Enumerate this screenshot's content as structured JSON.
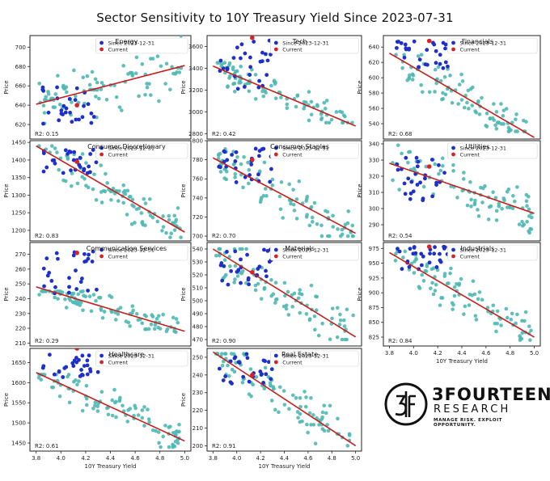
{
  "figure_title": "Sector Sensitivity to 10Y Treasury Yield Since 2023-07-31",
  "logo": {
    "name": "3FOURTEEN",
    "sub": "RESEARCH",
    "tagline": "MANAGE RISK. EXPLOIT OPPORTUNITY."
  },
  "legend": {
    "since": "Since 2023-12-31",
    "current": "Current"
  },
  "colors": {
    "teal": "#4fb8b3",
    "blue": "#1f2fc9",
    "red_point": "#d6232a",
    "trend": "#c81e1e",
    "axis": "#222222"
  },
  "chart_data": [
    {
      "type": "scatter",
      "title": "Energy",
      "ylabel": "Price",
      "xlabel": "",
      "r2": "R2: 0.15",
      "xlim": [
        3.75,
        5.05
      ],
      "ylim": [
        605,
        712
      ],
      "yticks": [
        620,
        640,
        660,
        680,
        700
      ],
      "xticks": [],
      "trend": [
        [
          3.8,
          641
        ],
        [
          5.0,
          681
        ]
      ],
      "current": [
        4.13,
        640
      ],
      "since_y": [
        620,
        660
      ],
      "sec_range": [
        600,
        715
      ],
      "seed": 11
    },
    {
      "type": "scatter",
      "title": "Tech",
      "ylabel": "Price",
      "xlabel": "",
      "r2": "R2: 0.42",
      "xlim": [
        3.75,
        5.05
      ],
      "ylim": [
        2750,
        3700
      ],
      "yticks": [
        2800,
        3000,
        3200,
        3400,
        3600
      ],
      "xticks": [],
      "trend": [
        [
          3.8,
          3420
        ],
        [
          5.0,
          2870
        ]
      ],
      "current": [
        4.13,
        3680
      ],
      "since_y": [
        3200,
        3660
      ],
      "sec_range": [
        2900,
        3450
      ],
      "seed": 22
    },
    {
      "type": "scatter",
      "title": "Financials",
      "ylabel": "Price",
      "xlabel": "",
      "r2": "R2: 0.68",
      "xlim": [
        3.75,
        5.05
      ],
      "ylim": [
        520,
        655
      ],
      "yticks": [
        540,
        560,
        580,
        600,
        620,
        640
      ],
      "xticks": [],
      "trend": [
        [
          3.8,
          632
        ],
        [
          5.0,
          522
        ]
      ],
      "current": [
        4.13,
        648
      ],
      "since_y": [
        612,
        648
      ],
      "sec_range": [
        530,
        630
      ],
      "seed": 33
    },
    {
      "type": "scatter",
      "title": "Consumer Discretionary",
      "ylabel": "Price",
      "xlabel": "",
      "r2": "R2: 0.83",
      "xlim": [
        3.75,
        5.05
      ],
      "ylim": [
        1170,
        1455
      ],
      "yticks": [
        1200,
        1250,
        1300,
        1350,
        1400,
        1450
      ],
      "xticks": [],
      "trend": [
        [
          3.8,
          1440
        ],
        [
          5.0,
          1195
        ]
      ],
      "current": [
        4.13,
        1395
      ],
      "since_y": [
        1360,
        1430
      ],
      "sec_range": [
        1180,
        1440
      ],
      "seed": 44
    },
    {
      "type": "scatter",
      "title": "Consumer Staples",
      "ylabel": "Price",
      "xlabel": "",
      "r2": "R2: 0.70",
      "xlim": [
        3.75,
        5.05
      ],
      "ylim": [
        695,
        800
      ],
      "yticks": [
        700,
        720,
        740,
        760,
        780,
        800
      ],
      "xticks": [],
      "trend": [
        [
          3.8,
          782
        ],
        [
          5.0,
          703
        ]
      ],
      "current": [
        4.13,
        780
      ],
      "since_y": [
        755,
        792
      ],
      "sec_range": [
        700,
        795
      ],
      "seed": 55
    },
    {
      "type": "scatter",
      "title": "Utilities",
      "ylabel": "Price",
      "xlabel": "",
      "r2": "R2: 0.54",
      "xlim": [
        3.75,
        5.05
      ],
      "ylim": [
        280,
        342
      ],
      "yticks": [
        290,
        300,
        310,
        320,
        330,
        340
      ],
      "xticks": [],
      "trend": [
        [
          3.8,
          328
        ],
        [
          5.0,
          297
        ]
      ],
      "current": [
        4.13,
        326
      ],
      "since_y": [
        305,
        332
      ],
      "sec_range": [
        285,
        340
      ],
      "seed": 66
    },
    {
      "type": "scatter",
      "title": "Communication Services",
      "ylabel": "Price",
      "xlabel": "",
      "r2": "R2: 0.29",
      "xlim": [
        3.75,
        5.05
      ],
      "ylim": [
        208,
        278
      ],
      "yticks": [
        210,
        220,
        230,
        240,
        250,
        260,
        270
      ],
      "xticks": [],
      "trend": [
        [
          3.8,
          248
        ],
        [
          5.0,
          218
        ]
      ],
      "current": [
        4.13,
        271
      ],
      "since_y": [
        243,
        272
      ],
      "sec_range": [
        212,
        245
      ],
      "seed": 77
    },
    {
      "type": "scatter",
      "title": "Materials",
      "ylabel": "Price",
      "xlabel": "",
      "r2": "R2: 0.90",
      "xlim": [
        3.75,
        5.05
      ],
      "ylim": [
        465,
        545
      ],
      "yticks": [
        470,
        480,
        490,
        500,
        510,
        520,
        530,
        540
      ],
      "xticks": [],
      "trend": [
        [
          3.8,
          540
        ],
        [
          5.0,
          472
        ]
      ],
      "current": [
        4.13,
        522
      ],
      "since_y": [
        512,
        540
      ],
      "sec_range": [
        470,
        540
      ],
      "seed": 88
    },
    {
      "type": "scatter",
      "title": "Industrials",
      "ylabel": "Price",
      "xlabel": "10Y Treasury Yield",
      "r2": "R2: 0.84",
      "xlim": [
        3.75,
        5.05
      ],
      "ylim": [
        810,
        985
      ],
      "yticks": [
        825,
        850,
        875,
        900,
        925,
        950,
        975
      ],
      "xticks": [
        3.8,
        4.0,
        4.2,
        4.4,
        4.6,
        4.8,
        5.0
      ],
      "trend": [
        [
          3.8,
          968
        ],
        [
          5.0,
          825
        ]
      ],
      "current": [
        4.13,
        978
      ],
      "since_y": [
        940,
        978
      ],
      "sec_range": [
        820,
        970
      ],
      "seed": 99
    },
    {
      "type": "scatter",
      "title": "Healthcare",
      "ylabel": "Price",
      "xlabel": "10Y Treasury Yield",
      "r2": "R2: 0.61",
      "xlim": [
        3.75,
        5.05
      ],
      "ylim": [
        1430,
        1685
      ],
      "yticks": [
        1450,
        1500,
        1550,
        1600,
        1650
      ],
      "xticks": [
        3.8,
        4.0,
        4.2,
        4.4,
        4.6,
        4.8,
        5.0
      ],
      "trend": [
        [
          3.8,
          1625
        ],
        [
          5.0,
          1455
        ]
      ],
      "current": [
        4.13,
        1685
      ],
      "since_y": [
        1610,
        1670
      ],
      "sec_range": [
        1440,
        1620
      ],
      "seed": 111
    },
    {
      "type": "scatter",
      "title": "Real Estate",
      "ylabel": "Price",
      "xlabel": "10Y Treasury Yield",
      "r2": "R2: 0.91",
      "xlim": [
        3.75,
        5.05
      ],
      "ylim": [
        197,
        255
      ],
      "yticks": [
        200,
        210,
        220,
        230,
        240,
        250
      ],
      "xticks": [
        3.8,
        4.0,
        4.2,
        4.4,
        4.6,
        4.8,
        5.0
      ],
      "trend": [
        [
          3.8,
          253
        ],
        [
          5.0,
          200
        ]
      ],
      "current": [
        4.13,
        240
      ],
      "since_y": [
        235,
        252
      ],
      "sec_range": [
        200,
        252
      ],
      "seed": 122
    }
  ]
}
